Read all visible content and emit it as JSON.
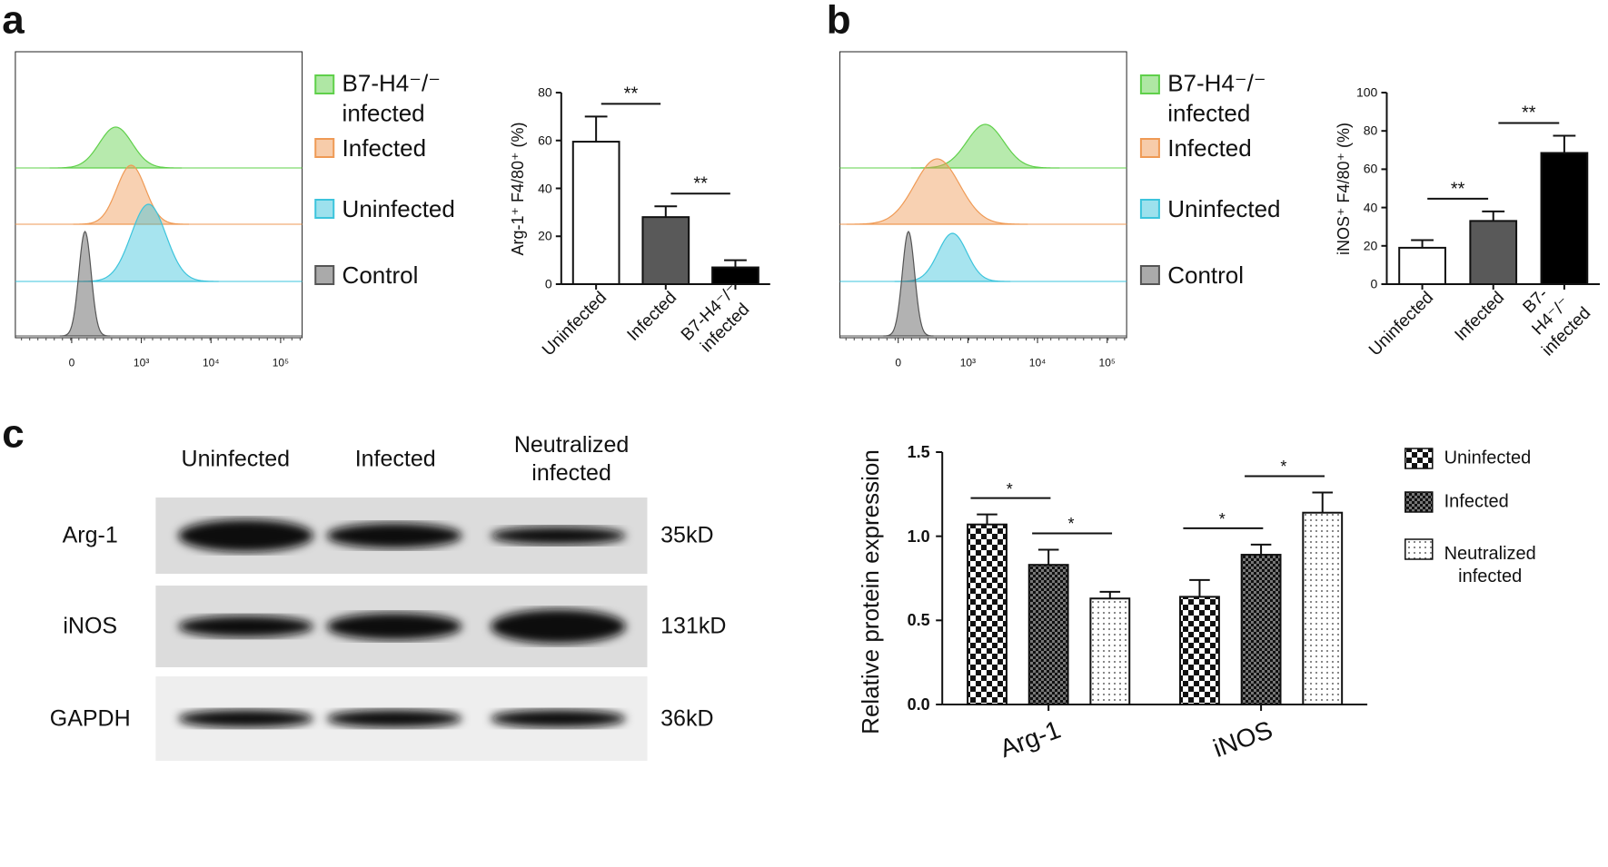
{
  "panel_labels": [
    "a",
    "b",
    "c"
  ],
  "western_blot": {
    "columns": [
      "Uninfected",
      "Infected",
      "Neutralized\ninfected"
    ],
    "rows": [
      {
        "label": "Arg-1",
        "size": "35kD"
      },
      {
        "label": "iNOS",
        "size": "131kD"
      },
      {
        "label": "GAPDH",
        "size": "36kD"
      }
    ]
  },
  "chart_data": [
    {
      "type": "flow-histogram",
      "series": [
        {
          "name": "B7-H4⁻/⁻\ninfected",
          "color": "#5fd04a"
        },
        {
          "name": "Infected",
          "color": "#ef9a55"
        },
        {
          "name": "Uninfected",
          "color": "#3cc4dc"
        },
        {
          "name": "Control",
          "color": "#555555"
        }
      ],
      "xticks": [
        0,
        {
          "value": 1000,
          "label": "10³"
        },
        {
          "value": 10000,
          "label": "10⁴"
        },
        {
          "value": 100000,
          "label": "10⁵"
        }
      ]
    },
    {
      "type": "bar",
      "categories": [
        "Uninfected",
        "Infected",
        "B7-H4⁻/⁻\ninfected"
      ],
      "values": [
        59.5,
        28,
        7
      ],
      "errors": [
        10.5,
        4.5,
        3
      ],
      "colors": [
        "#ffffff",
        "#595959",
        "#000000"
      ],
      "y_label": "Arg-1⁺ F4/80⁺ (%)",
      "ylim": [
        0,
        80
      ],
      "yticks": [
        0,
        20,
        40,
        60,
        80
      ],
      "annotations": [
        {
          "label": "**",
          "between": [
            0,
            1
          ]
        },
        {
          "label": "**",
          "between": [
            1,
            2
          ]
        }
      ]
    },
    {
      "type": "flow-histogram",
      "series": [
        {
          "name": "B7-H4⁻/⁻\ninfected",
          "color": "#5fd04a"
        },
        {
          "name": "Infected",
          "color": "#ef9a55"
        },
        {
          "name": "Uninfected",
          "color": "#3cc4dc"
        },
        {
          "name": "Control",
          "color": "#555555"
        }
      ],
      "xticks": [
        0,
        {
          "value": 1000,
          "label": "10³"
        },
        {
          "value": 10000,
          "label": "10⁴"
        },
        {
          "value": 100000,
          "label": "10⁵"
        }
      ]
    },
    {
      "type": "bar",
      "categories": [
        "Uninfected",
        "Infected",
        "B7-H4⁻/⁻\ninfected"
      ],
      "values": [
        19,
        33,
        68.5
      ],
      "errors": [
        4,
        5,
        9
      ],
      "colors": [
        "#ffffff",
        "#595959",
        "#000000"
      ],
      "y_label": "iNOS⁺ F4/80⁺ (%)",
      "ylim": [
        0,
        100
      ],
      "yticks": [
        0,
        20,
        40,
        60,
        80,
        100
      ],
      "annotations": [
        {
          "label": "**",
          "between": [
            0,
            1
          ]
        },
        {
          "label": "**",
          "between": [
            1,
            2
          ]
        }
      ]
    },
    {
      "type": "grouped-bar",
      "categories": [
        "Arg-1",
        "iNOS"
      ],
      "series": [
        {
          "name": "Uninfected",
          "pattern": "checker",
          "values": [
            1.07,
            0.64
          ],
          "errors": [
            0.06,
            0.1
          ]
        },
        {
          "name": "Infected",
          "pattern": "fine-checker",
          "values": [
            0.83,
            0.89
          ],
          "errors": [
            0.09,
            0.06
          ]
        },
        {
          "name": "Neutralized\ninfected",
          "pattern": "dots",
          "values": [
            0.63,
            1.14
          ],
          "errors": [
            0.04,
            0.12
          ]
        }
      ],
      "y_label": "Relative protein expression",
      "ylim": [
        0,
        1.5
      ],
      "yticks": [
        {
          "value": 0,
          "label": "0.0"
        },
        {
          "value": 0.5,
          "label": "0.5"
        },
        {
          "value": 1,
          "label": "1.0"
        },
        {
          "value": 1.5,
          "label": "1.5"
        }
      ],
      "annotations": [
        {
          "label": "*",
          "category": 0,
          "between": [
            0,
            1
          ]
        },
        {
          "label": "*",
          "category": 0,
          "between": [
            1,
            2
          ]
        },
        {
          "label": "*",
          "category": 1,
          "between": [
            0,
            1
          ]
        },
        {
          "label": "*",
          "category": 1,
          "between": [
            1,
            2
          ]
        }
      ]
    }
  ]
}
